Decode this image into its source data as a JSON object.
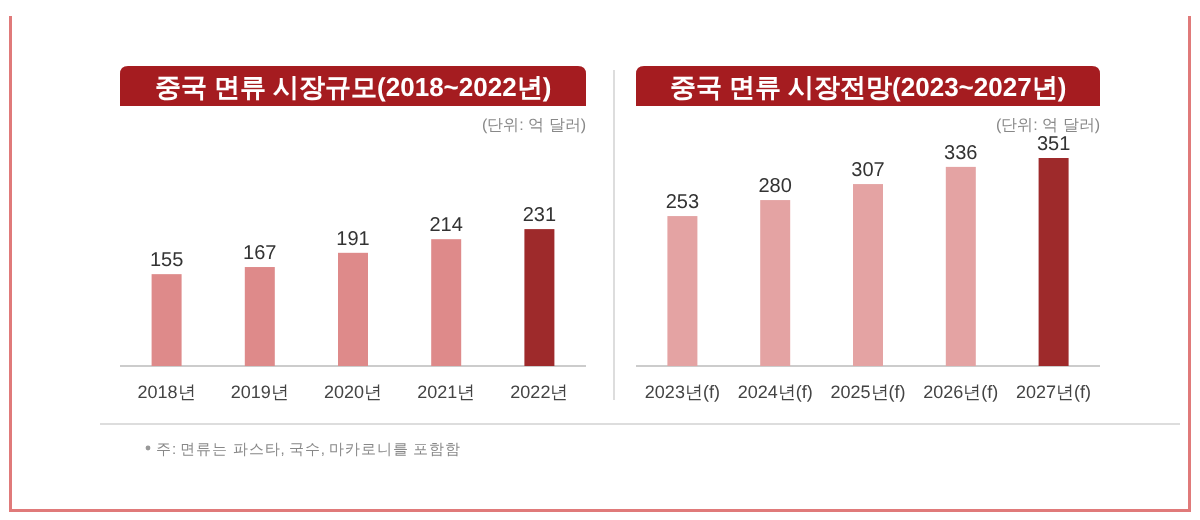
{
  "chart_data": [
    {
      "type": "bar",
      "title": "중국 면류 시장규모(2018~2022년)",
      "subtitle": "(단위: 억 달러)",
      "categories": [
        "2018년",
        "2019년",
        "2020년",
        "2021년",
        "2022년"
      ],
      "values": [
        155,
        167,
        191,
        214,
        231
      ],
      "colors": [
        "#de8a8a",
        "#de8a8a",
        "#de8a8a",
        "#de8a8a",
        "#9e2a2b"
      ],
      "data_labels": true,
      "annotations": [
        "주: 면류는 파스타, 국수, 마카로니를 포함함"
      ]
    },
    {
      "type": "bar",
      "title": "중국 면류 시장전망(2023~2027년)",
      "subtitle": "(단위: 억 달러)",
      "categories": [
        "2023년(f)",
        "2024년(f)",
        "2025년(f)",
        "2026년(f)",
        "2027년(f)"
      ],
      "values": [
        253,
        280,
        307,
        336,
        351
      ],
      "colors": [
        "#e4a3a3",
        "#e4a3a3",
        "#e4a3a3",
        "#e4a3a3",
        "#9e2a2b"
      ],
      "data_labels": true
    }
  ]
}
